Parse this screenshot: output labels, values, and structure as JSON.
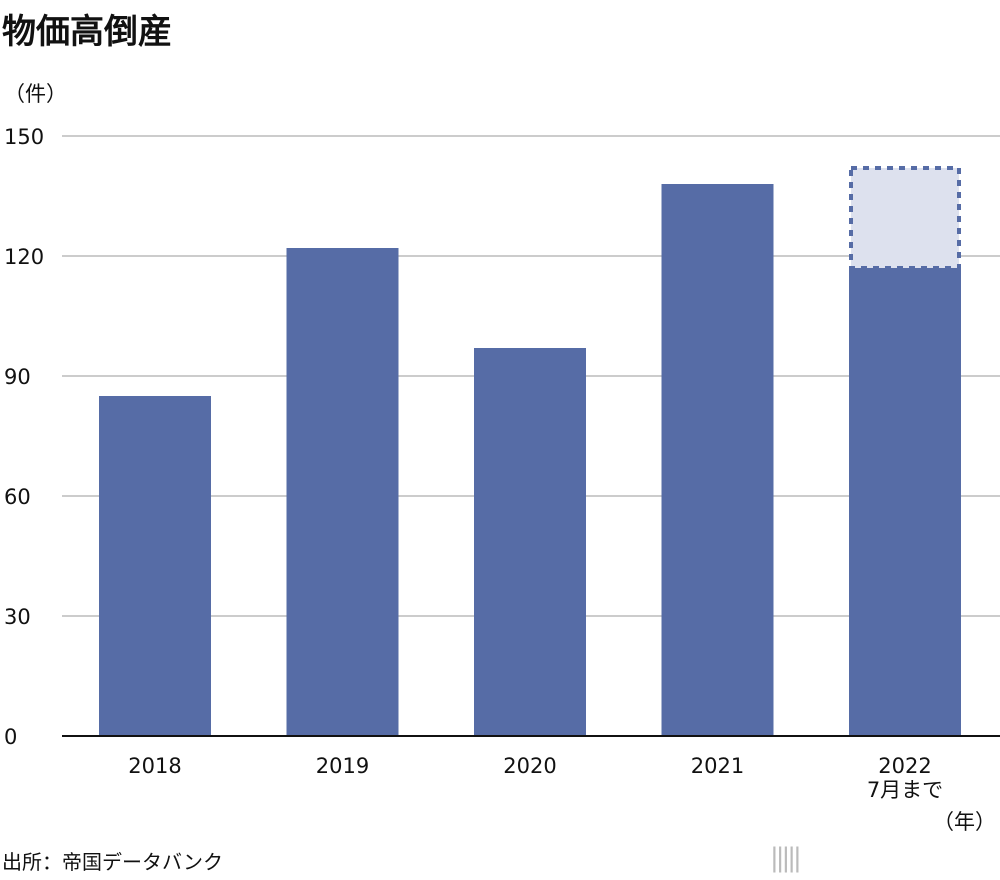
{
  "chart_data": {
    "type": "bar",
    "title": "物価高倒産",
    "ylabel": "（件）",
    "xlabel": "（年）",
    "categories": [
      "2018",
      "2019",
      "2020",
      "2021",
      "2022"
    ],
    "category_sublabels": [
      "",
      "",
      "",
      "",
      "7月まで"
    ],
    "values": [
      85,
      122,
      97,
      138,
      117
    ],
    "projection": {
      "category": "2022",
      "value": 142
    },
    "ylim": [
      0,
      150
    ],
    "yticks": [
      0,
      30,
      60,
      90,
      120,
      150
    ],
    "grid": true,
    "colors": {
      "bar": "#566ca6",
      "projection_fill": "#dde1ee",
      "grid": "#cccccc"
    }
  },
  "source": "出所：帝国データバンク",
  "logo": {
    "brand": "nippon",
    "dot": ".",
    "suffix": "com"
  }
}
